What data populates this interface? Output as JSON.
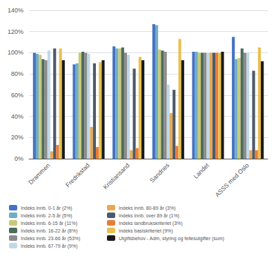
{
  "chart_data": {
    "type": "bar",
    "categories": [
      "Drammen",
      "Fredrikstad",
      "Kristiansand",
      "Sandnes",
      "Landet",
      "ASSS med Oslo"
    ],
    "series": [
      {
        "name": "Indeks innb. 0-1 år (2%)",
        "color": "#4472C4",
        "values": [
          1.0,
          0.89,
          1.06,
          1.27,
          1.01,
          1.15
        ]
      },
      {
        "name": "Indeks innb. 2-5 år (5%)",
        "color": "#70ADC4",
        "values": [
          0.99,
          0.9,
          1.04,
          1.26,
          1.01,
          0.94
        ]
      },
      {
        "name": "Indeks innb. 6-15 år (11%)",
        "color": "#C8C87A",
        "values": [
          0.98,
          1.0,
          1.04,
          1.03,
          1.0,
          0.95
        ]
      },
      {
        "name": "Indeks innb. 16-22 år (8%)",
        "color": "#4D6B5C",
        "values": [
          0.94,
          1.01,
          1.05,
          1.02,
          1.0,
          1.04
        ]
      },
      {
        "name": "Indeks innb. 23-66 år (53%)",
        "color": "#8C8C8C",
        "values": [
          0.93,
          1.0,
          1.0,
          1.01,
          1.0,
          1.0
        ]
      },
      {
        "name": "Indeks innb. 67-79 år (9%)",
        "color": "#C0D8E8",
        "values": [
          1.02,
          0.99,
          0.98,
          0.7,
          1.0,
          1.0
        ]
      },
      {
        "name": "Indeks innb. 80-89 år (3%)",
        "color": "#E8AA50",
        "values": [
          0.07,
          0.3,
          0.08,
          0.43,
          1.0,
          0.08
        ]
      },
      {
        "name": "Indeks innb. over 89 år (1%)",
        "color": "#4D5A6B",
        "values": [
          1.04,
          0.9,
          0.85,
          0.65,
          1.0,
          0.83
        ]
      },
      {
        "name": "Indeks landbrukskriteriet (3%)",
        "color": "#E87B3C",
        "values": [
          0.13,
          0.11,
          0.1,
          0.12,
          1.0,
          0.08
        ]
      },
      {
        "name": "Indeks basiskriteriet (9%)",
        "color": "#E8C050",
        "values": [
          1.04,
          0.91,
          0.96,
          1.13,
          1.0,
          1.05
        ]
      },
      {
        "name": "Utgiftsbehov - Adm, styring og fellesutgifter (sum)",
        "color": "#1A1A1A",
        "values": [
          0.93,
          0.93,
          0.93,
          0.93,
          1.01,
          0.92
        ]
      }
    ],
    "ylim": [
      0,
      1.4
    ],
    "yticks": [
      {
        "value": 0.0,
        "label": "0%"
      },
      {
        "value": 0.2,
        "label": "20%"
      },
      {
        "value": 0.4,
        "label": "40%"
      },
      {
        "value": 0.6,
        "label": "60%"
      },
      {
        "value": 0.8,
        "label": "80%"
      },
      {
        "value": 1.0,
        "label": "100%"
      },
      {
        "value": 1.2,
        "label": "120%"
      },
      {
        "value": 1.4,
        "label": "140%"
      }
    ],
    "grid": true,
    "legend": "bottom"
  }
}
